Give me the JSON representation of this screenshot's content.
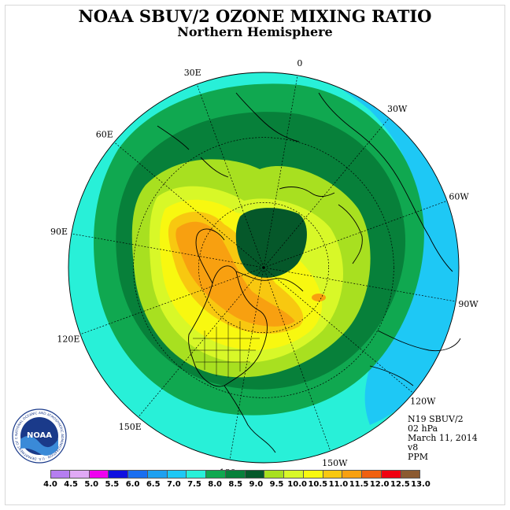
{
  "title": "NOAA SBUV/2 OZONE MIXING RATIO",
  "subtitle": "Northern Hemisphere",
  "longitude_labels": [
    "90E",
    "60E",
    "30E",
    "0",
    "30W",
    "60W",
    "90W",
    "120W",
    "150W",
    "180",
    "150E",
    "120E"
  ],
  "info": {
    "instrument": "N19 SBUV/2",
    "pressure": "02 hPa",
    "date": "March 11, 2014",
    "version": "v8",
    "unit": "PPM"
  },
  "logo": {
    "text": "NOAA",
    "ring_text": "NATIONAL OCEANIC AND ATMOSPHERIC ADMINISTRATION · U.S. DEPARTMENT OF COMMERCE"
  },
  "legend": {
    "ticks": [
      "4.0",
      "4.5",
      "5.0",
      "5.5",
      "6.0",
      "6.5",
      "7.0",
      "7.5",
      "8.0",
      "8.5",
      "9.0",
      "9.5",
      "10.0",
      "10.5",
      "11.0",
      "11.5",
      "12.0",
      "12.5",
      "13.0"
    ],
    "colors": [
      "#b57ef0",
      "#e0a9f5",
      "#f000f0",
      "#1010e0",
      "#1a6ef0",
      "#1ea0f0",
      "#1ec8f5",
      "#28f0d8",
      "#10a850",
      "#07803a",
      "#05582a",
      "#a8e020",
      "#d8f828",
      "#f8f810",
      "#f8c810",
      "#f8a010",
      "#f06010",
      "#f00010",
      "#8b5a30"
    ]
  },
  "colors": {
    "ocean_far": "#1ec8f5",
    "ring_outer": "#28f0d8",
    "ring_green": "#10a850",
    "ring_dark": "#07803a",
    "mid_yellowgreen": "#a8e020",
    "mid_light": "#d8f828",
    "mid_yellow": "#f8f810",
    "core_orange": "#f8a010",
    "core_light_orange": "#f8c810",
    "low_center": "#05582a"
  }
}
